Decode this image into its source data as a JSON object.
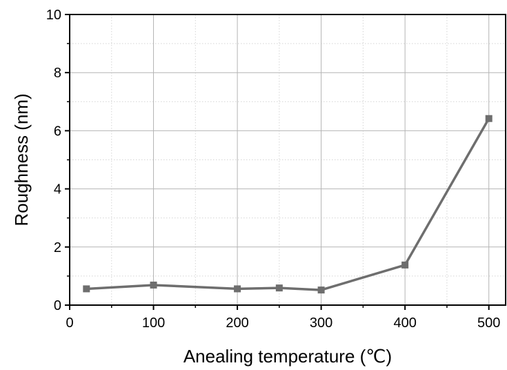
{
  "chart_data": {
    "type": "line",
    "title": "",
    "xlabel": "Anealing temperature (℃)",
    "ylabel": "Roughness (nm)",
    "xlim": [
      0,
      520
    ],
    "ylim": [
      0,
      10
    ],
    "x_ticks": [
      0,
      100,
      200,
      300,
      400,
      500
    ],
    "y_ticks": [
      0,
      2,
      4,
      6,
      8,
      10
    ],
    "x_minor_step": 50,
    "y_minor_step": 1,
    "grid": true,
    "legend": "none",
    "series": [
      {
        "marker": "square",
        "color": "#6e6e6e",
        "points": [
          {
            "x": 20,
            "y": 0.56
          },
          {
            "x": 100,
            "y": 0.69
          },
          {
            "x": 200,
            "y": 0.56
          },
          {
            "x": 250,
            "y": 0.59
          },
          {
            "x": 300,
            "y": 0.52
          },
          {
            "x": 400,
            "y": 1.38
          },
          {
            "x": 500,
            "y": 6.42
          }
        ]
      }
    ]
  }
}
